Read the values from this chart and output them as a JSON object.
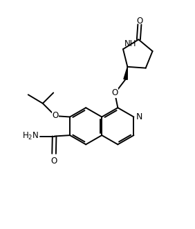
{
  "background": "#ffffff",
  "line_color": "#000000",
  "line_width": 1.4,
  "font_size": 8.5,
  "figsize": [
    2.82,
    3.32
  ],
  "dpi": 100,
  "xlim": [
    0,
    10
  ],
  "ylim": [
    0,
    11.8
  ]
}
